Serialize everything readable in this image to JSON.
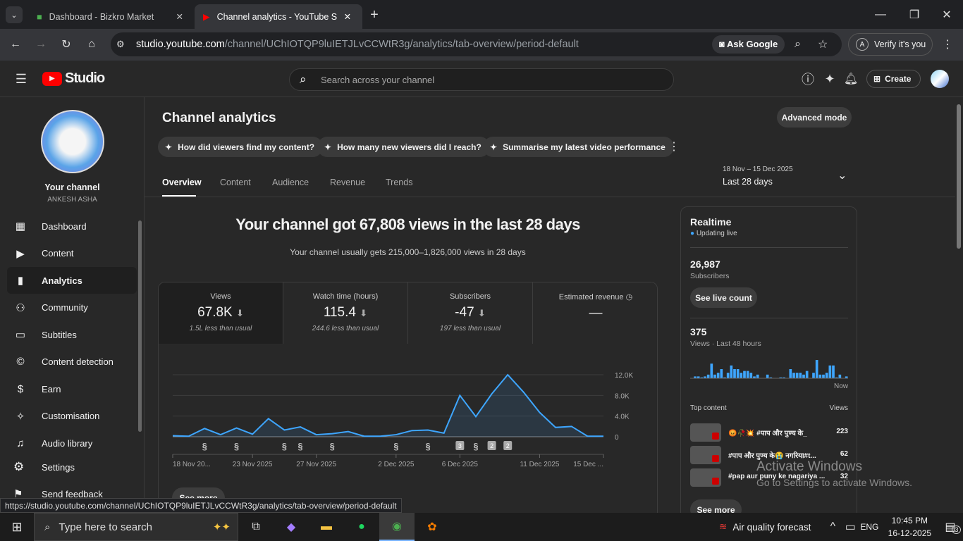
{
  "browser": {
    "tabs": [
      {
        "title": "Dashboard - Bizkro Market",
        "active": false
      },
      {
        "title": "Channel analytics - YouTube Stu",
        "active": true
      }
    ],
    "url_host": "studio.youtube.com",
    "url_path": "/channel/UChIOTQP9luIETJLvCCWtR3g/analytics/tab-overview/period-default",
    "ask_google": "Ask Google",
    "verify": "Verify it's you",
    "profile_initial": "A",
    "status_url": "https://studio.youtube.com/channel/UChIOTQP9luIETJLvCCWtR3g/analytics/tab-overview/period-default"
  },
  "header": {
    "logo": "Studio",
    "search_placeholder": "Search across your channel",
    "create": "Create"
  },
  "sidebar": {
    "your_channel": "Your channel",
    "channel_name": "ANKESH ASHA",
    "items": [
      {
        "label": "Dashboard",
        "icon": "dashboard-icon"
      },
      {
        "label": "Content",
        "icon": "content-icon"
      },
      {
        "label": "Analytics",
        "icon": "analytics-icon",
        "active": true
      },
      {
        "label": "Community",
        "icon": "community-icon"
      },
      {
        "label": "Subtitles",
        "icon": "subtitles-icon"
      },
      {
        "label": "Content detection",
        "icon": "copyright-icon"
      },
      {
        "label": "Earn",
        "icon": "dollar-icon"
      },
      {
        "label": "Customisation",
        "icon": "magic-wand-icon"
      },
      {
        "label": "Audio library",
        "icon": "audio-library-icon"
      }
    ],
    "settings": "Settings",
    "feedback": "Send feedback"
  },
  "main": {
    "title": "Channel analytics",
    "advanced": "Advanced mode",
    "chips": [
      "How did viewers find my content?",
      "How many new viewers did I reach?",
      "Summarise my latest video performance"
    ],
    "tabs": [
      "Overview",
      "Content",
      "Audience",
      "Revenue",
      "Trends"
    ],
    "date_range": "18 Nov – 15 Dec 2025",
    "period": "Last 28 days",
    "headline": "Your channel got 67,808 views in the last 28 days",
    "subline": "Your channel usually gets 215,000–1,826,000 views in 28 days",
    "metrics": [
      {
        "label": "Views",
        "value": "67.8K",
        "sub": "1.5L less than usual"
      },
      {
        "label": "Watch time (hours)",
        "value": "115.4",
        "sub": "244.6 less than usual"
      },
      {
        "label": "Subscribers",
        "value": "-47",
        "sub": "197 less than usual"
      },
      {
        "label": "Estimated revenue",
        "value": "—",
        "sub": ""
      }
    ],
    "see_more": "See more"
  },
  "chart_data": {
    "type": "area",
    "color": "#3ea6ff",
    "x": [
      "18 Nov 2025",
      "19 Nov",
      "20 Nov",
      "21 Nov",
      "22 Nov",
      "23 Nov 2025",
      "24 Nov",
      "25 Nov",
      "26 Nov",
      "27 Nov 2025",
      "28 Nov",
      "29 Nov",
      "30 Nov",
      "1 Dec",
      "2 Dec 2025",
      "3 Dec",
      "4 Dec",
      "5 Dec",
      "6 Dec 2025",
      "7 Dec",
      "8 Dec",
      "9 Dec",
      "10 Dec",
      "11 Dec 2025",
      "12 Dec",
      "13 Dec",
      "14 Dec",
      "15 Dec 2025"
    ],
    "values": [
      200,
      100,
      1600,
      400,
      1700,
      500,
      3500,
      1300,
      1900,
      400,
      600,
      1000,
      100,
      100,
      400,
      1200,
      1300,
      700,
      8000,
      3900,
      8300,
      12000,
      8600,
      4700,
      1800,
      2000,
      100,
      100
    ],
    "ylim": [
      0,
      12000
    ],
    "yticks": [
      "0",
      "4.0K",
      "8.0K",
      "12.0K"
    ],
    "xtick_labels": [
      "18 Nov 20...",
      "23 Nov 2025",
      "27 Nov 2025",
      "2 Dec 2025",
      "6 Dec 2025",
      "11 Dec 2025",
      "15 Dec ..."
    ],
    "xtick_index": [
      0,
      5,
      9,
      14,
      18,
      23,
      27
    ],
    "markers": [
      {
        "day": 2,
        "type": "short"
      },
      {
        "day": 4,
        "type": "short"
      },
      {
        "day": 7,
        "type": "short"
      },
      {
        "day": 8,
        "type": "short"
      },
      {
        "day": 10,
        "type": "short"
      },
      {
        "day": 14,
        "type": "short"
      },
      {
        "day": 16,
        "type": "short"
      },
      {
        "day": 18,
        "type": "count",
        "label": "3"
      },
      {
        "day": 19,
        "type": "short"
      },
      {
        "day": 20,
        "type": "count",
        "label": "2"
      },
      {
        "day": 21,
        "type": "count",
        "label": "2"
      }
    ]
  },
  "realtime": {
    "title": "Realtime",
    "live": "Updating live",
    "subs": "26,987",
    "subs_label": "Subscribers",
    "live_count": "See live count",
    "views": "375",
    "views_label": "Views · Last 48 hours",
    "now": "Now",
    "bars": [
      0,
      1,
      1,
      0.5,
      1,
      2,
      8,
      2,
      3,
      5,
      0.5,
      3,
      7,
      5,
      5,
      3,
      4,
      4,
      3,
      1,
      2,
      0,
      0,
      2,
      0.5,
      0,
      0,
      0.5,
      0.5,
      0,
      5,
      3,
      3,
      3,
      2,
      4,
      0,
      3,
      10,
      2,
      2,
      3,
      7,
      7,
      0.5,
      2,
      0,
      1
    ],
    "top_label": "Top content",
    "views_col": "Views",
    "top": [
      {
        "title": "😡🥀💥 #पाप और पुण्य के_",
        "views": "223"
      },
      {
        "title": "#पाप और पुण्य के😭 नगरिया#t...",
        "views": "62"
      },
      {
        "title": "#pap aur puny ke nagariya ...",
        "views": "32"
      }
    ],
    "see_more": "See more"
  },
  "watermark": {
    "l1": "Activate Windows",
    "l2": "Go to Settings to activate Windows."
  },
  "taskbar": {
    "search": "Type here to search",
    "weather": "Air quality forecast",
    "lang": "ENG",
    "time": "10:45 PM",
    "date": "16-12-2025",
    "notif": "3"
  }
}
